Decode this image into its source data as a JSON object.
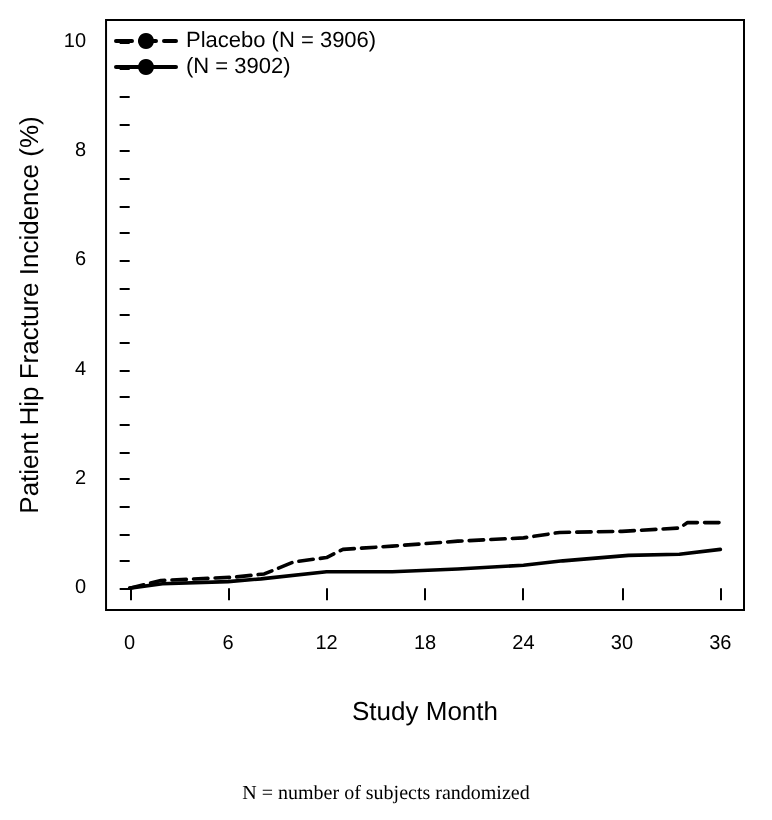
{
  "chart_data": {
    "type": "line",
    "xlabel": "Study Month",
    "ylabel": "Patient Hip Fracture Incidence (%)",
    "annotations": [
      "N = number of subjects randomized"
    ],
    "series": [
      {
        "name": "Placebo (N = 3906)",
        "color": "#000000",
        "line_style": "dashed",
        "x": [
          0,
          1.9,
          6.3,
          8.2,
          10,
          12,
          13,
          16,
          20,
          24,
          26.2,
          30,
          33.5,
          34,
          36
        ],
        "values": [
          0,
          0.14,
          0.2,
          0.26,
          0.48,
          0.56,
          0.71,
          0.77,
          0.86,
          0.92,
          1.02,
          1.04,
          1.1,
          1.2,
          1.2
        ]
      },
      {
        "name": "(N = 3902)",
        "color": "#000000",
        "line_style": "solid",
        "x": [
          0,
          2,
          6,
          8,
          12,
          16,
          20,
          24,
          26.4,
          30.4,
          33.5,
          36
        ],
        "values": [
          0,
          0.08,
          0.12,
          0.17,
          0.3,
          0.3,
          0.35,
          0.42,
          0.5,
          0.6,
          0.62,
          0.71
        ]
      }
    ],
    "xlim": [
      -1.44,
      37.44
    ],
    "xticks": [
      0,
      6,
      12,
      18,
      24,
      30,
      36
    ],
    "ylim": [
      -0.4,
      10.4
    ],
    "yticks": [
      0,
      {
        "value": 0.5,
        "label": null
      },
      {
        "value": 1,
        "label": null
      },
      {
        "value": 1.5,
        "label": null
      },
      2,
      {
        "value": 2.5,
        "label": null
      },
      {
        "value": 3,
        "label": null
      },
      {
        "value": 3.5,
        "label": null
      },
      4,
      {
        "value": 4.5,
        "label": null
      },
      {
        "value": 5,
        "label": null
      },
      {
        "value": 5.5,
        "label": null
      },
      6,
      {
        "value": 6.5,
        "label": null
      },
      {
        "value": 7,
        "label": null
      },
      {
        "value": 7.5,
        "label": null
      },
      8,
      {
        "value": 8.5,
        "label": null
      },
      {
        "value": 9,
        "label": null
      },
      {
        "value": 9.5,
        "label": null
      },
      10
    ],
    "grid": false,
    "legend": "top left",
    "marker": "none"
  }
}
